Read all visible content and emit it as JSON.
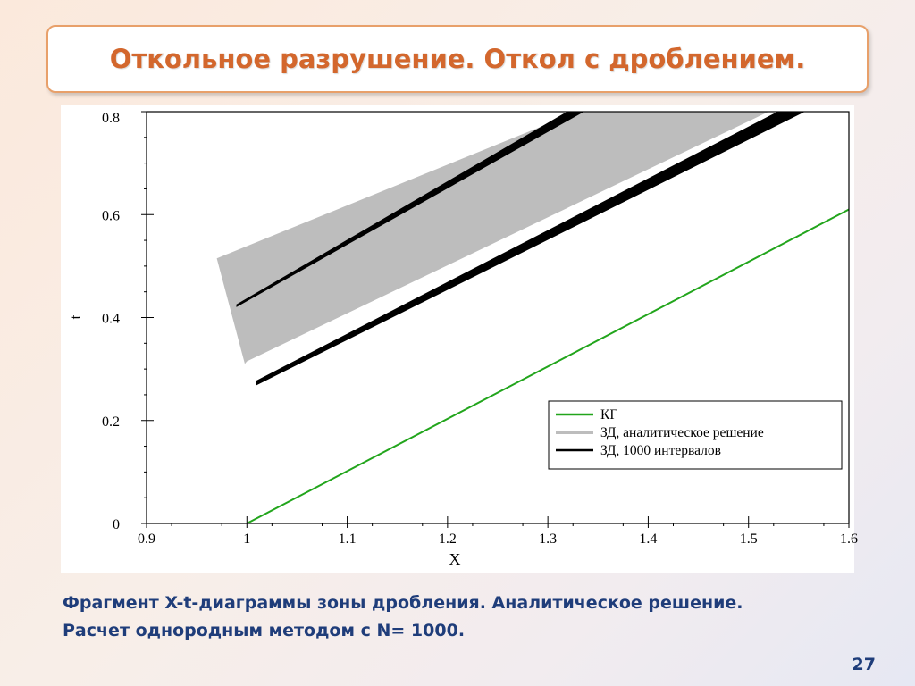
{
  "slide": {
    "title": "Откольное разрушение. Откол с дроблением.",
    "caption_line1": "Фрагмент X-t-диаграммы зоны дробления.  Аналитическое решение.",
    "caption_line2": "Расчет однородным методом с N= 1000.",
    "page_number": "27"
  },
  "chart_data": {
    "type": "line",
    "xlabel": "X",
    "ylabel": "t",
    "xlim": [
      0.9,
      1.6
    ],
    "ylim": [
      0,
      0.8
    ],
    "xticks": [
      "0.9",
      "1",
      "1.1",
      "1.2",
      "1.3",
      "1.4",
      "1.5",
      "1.6"
    ],
    "yticks": [
      "0",
      "0.2",
      "0.4",
      "0.6",
      "0.8"
    ],
    "legend_position": "bottom-right",
    "grid": false,
    "series": [
      {
        "name": "КГ",
        "color": "#22a51c",
        "kind": "line",
        "points": [
          [
            1.0,
            0.0
          ],
          [
            1.6,
            0.61
          ]
        ]
      },
      {
        "name": "ЗД, аналитическое решение",
        "color": "#bdbdbd",
        "kind": "band",
        "polygon": [
          [
            0.97,
            0.515
          ],
          [
            1.33,
            0.8
          ],
          [
            1.52,
            0.8
          ],
          [
            1.0,
            0.315
          ],
          [
            0.998,
            0.31
          ]
        ]
      },
      {
        "name": "ЗД, 1000 интервалов",
        "color": "#000000",
        "kind": "band-pair",
        "bands": [
          {
            "polygon": [
              [
                0.99,
                0.425
              ],
              [
                1.32,
                0.8
              ],
              [
                1.335,
                0.8
              ],
              [
                0.99,
                0.422
              ]
            ]
          },
          {
            "polygon": [
              [
                1.01,
                0.277
              ],
              [
                1.53,
                0.8
              ],
              [
                1.555,
                0.8
              ],
              [
                1.01,
                0.27
              ]
            ]
          }
        ]
      }
    ]
  }
}
